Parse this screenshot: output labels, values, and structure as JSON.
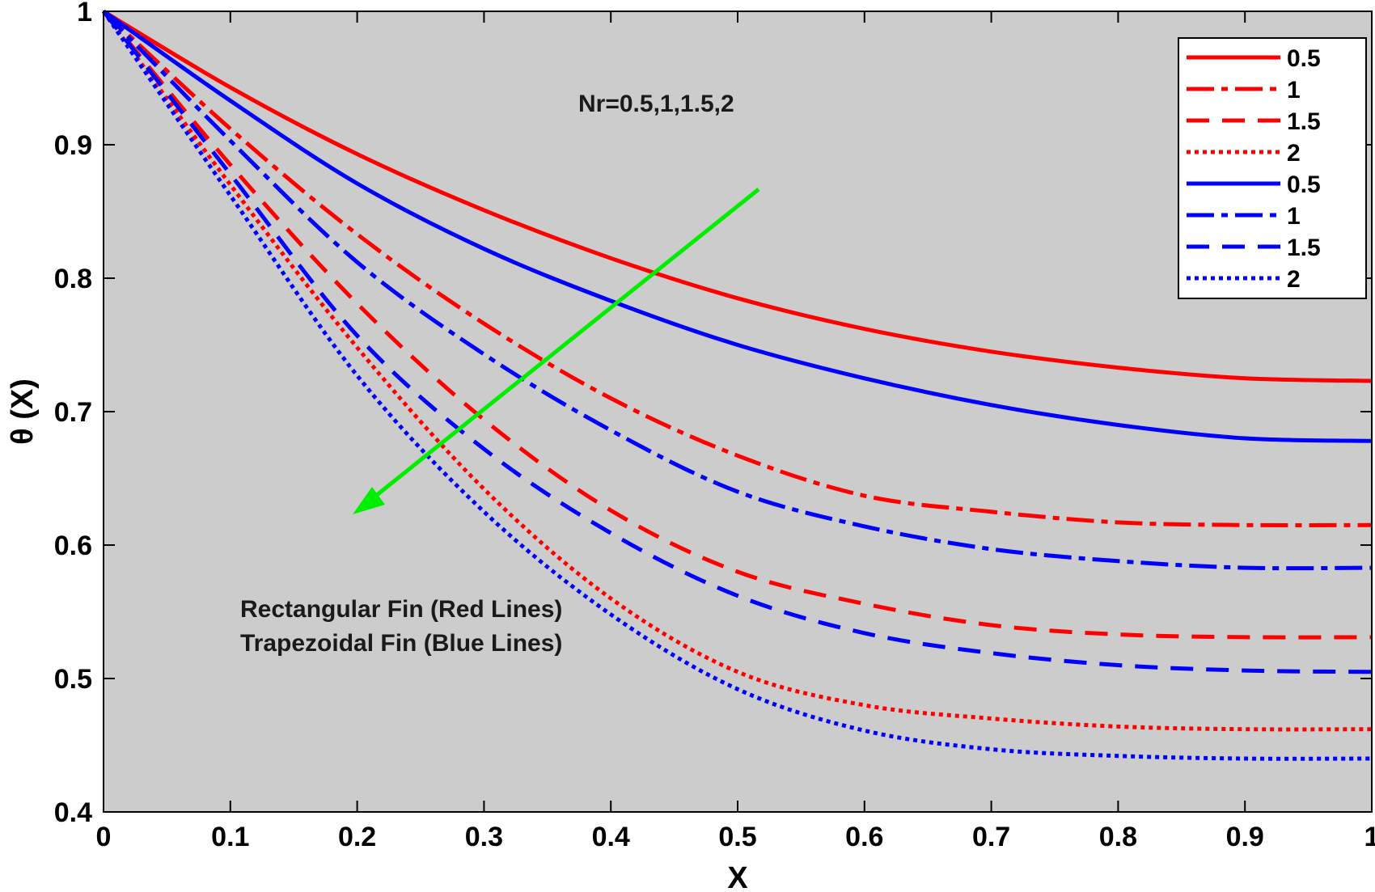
{
  "chart_data": {
    "type": "line",
    "title": "",
    "xlabel": "X",
    "ylabel": "θ (X)",
    "xlim": [
      0,
      1
    ],
    "ylim": [
      0.4,
      1
    ],
    "xticks": [
      "0",
      "0.1",
      "0.2",
      "0.3",
      "0.4",
      "0.5",
      "0.6",
      "0.7",
      "0.8",
      "0.9",
      "1"
    ],
    "yticks": [
      "0.4",
      "0.5",
      "0.6",
      "0.7",
      "0.8",
      "0.9",
      "1"
    ],
    "grid": false,
    "legend_position": "top-right",
    "x": [
      0,
      0.1,
      0.2,
      0.3,
      0.4,
      0.5,
      0.6,
      0.7,
      0.8,
      0.9,
      1
    ],
    "series": [
      {
        "name": "0.5",
        "group": "Rectangular Fin",
        "color": "#ff0000",
        "style": "solid",
        "values": [
          1,
          0.943,
          0.893,
          0.851,
          0.815,
          0.785,
          0.762,
          0.745,
          0.733,
          0.725,
          0.723
        ]
      },
      {
        "name": "1",
        "group": "Rectangular Fin",
        "color": "#ff0000",
        "style": "dashdot",
        "values": [
          1,
          0.912,
          0.833,
          0.766,
          0.71,
          0.667,
          0.637,
          0.625,
          0.617,
          0.615,
          0.615
        ]
      },
      {
        "name": "1.5",
        "group": "Rectangular Fin",
        "color": "#ff0000",
        "style": "dashed",
        "values": [
          1,
          0.885,
          0.781,
          0.694,
          0.626,
          0.58,
          0.556,
          0.54,
          0.533,
          0.531,
          0.531
        ]
      },
      {
        "name": "2",
        "group": "Rectangular Fin",
        "color": "#ff0000",
        "style": "dotted",
        "values": [
          1,
          0.87,
          0.748,
          0.642,
          0.56,
          0.505,
          0.48,
          0.47,
          0.464,
          0.462,
          0.462
        ]
      },
      {
        "name": "0.5",
        "group": "Trapezoidal Fin",
        "color": "#0000ff",
        "style": "solid",
        "values": [
          1,
          0.933,
          0.871,
          0.822,
          0.783,
          0.75,
          0.725,
          0.705,
          0.69,
          0.68,
          0.678
        ]
      },
      {
        "name": "1",
        "group": "Trapezoidal Fin",
        "color": "#0000ff",
        "style": "dashdot",
        "values": [
          1,
          0.903,
          0.812,
          0.743,
          0.686,
          0.64,
          0.614,
          0.597,
          0.588,
          0.583,
          0.583
        ]
      },
      {
        "name": "1.5",
        "group": "Trapezoidal Fin",
        "color": "#0000ff",
        "style": "dashed",
        "values": [
          1,
          0.878,
          0.757,
          0.672,
          0.609,
          0.562,
          0.534,
          0.519,
          0.51,
          0.506,
          0.505
        ]
      },
      {
        "name": "2",
        "group": "Trapezoidal Fin",
        "color": "#0000ff",
        "style": "dotted",
        "values": [
          1,
          0.862,
          0.727,
          0.625,
          0.548,
          0.492,
          0.461,
          0.447,
          0.442,
          0.44,
          0.44
        ]
      }
    ],
    "annotations": {
      "nr_label": "Nr=0.5,1,1.5,2",
      "line1": "Rectangular Fin (Red Lines)",
      "line2": "Trapezoidal Fin (Blue Lines)",
      "arrow_color": "#00ee00"
    },
    "plot_background": "#cccccc"
  }
}
